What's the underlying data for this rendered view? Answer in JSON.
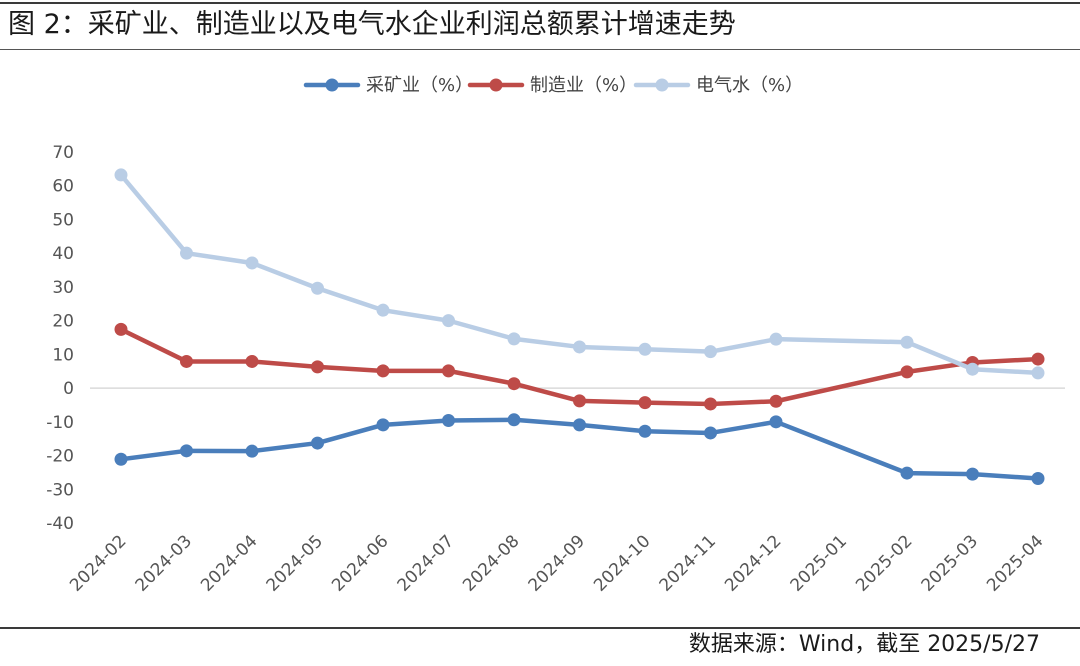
{
  "title": "图 2：采矿业、制造业以及电气水企业利润总额累计增速走势",
  "source": "数据来源：Wind，截至 2025/5/27",
  "chart_data": {
    "type": "line",
    "categories": [
      "2024-02",
      "2024-03",
      "2024-04",
      "2024-05",
      "2024-06",
      "2024-07",
      "2024-08",
      "2024-09",
      "2024-10",
      "2024-11",
      "2024-12",
      "2025-01",
      "2025-02",
      "2025-03",
      "2025-04"
    ],
    "ylim": [
      -40,
      70
    ],
    "yticks": [
      "70",
      "60",
      "50",
      "40",
      "30",
      "20",
      "10",
      "0",
      "-10",
      "-20",
      "-30",
      "-40"
    ],
    "legend_position": "top-center",
    "grid": false,
    "series": [
      {
        "name": "采矿业（%）",
        "color": "#4a7ebb",
        "values": [
          -21.1,
          -18.6,
          -18.7,
          -16.3,
          -10.9,
          -9.6,
          -9.4,
          -10.9,
          -12.8,
          -13.3,
          -10.0,
          null,
          -25.2,
          -25.5,
          -26.8
        ]
      },
      {
        "name": "制造业（%）",
        "color": "#be4b48",
        "values": [
          17.4,
          7.9,
          7.9,
          6.3,
          5.1,
          5.1,
          1.3,
          -3.8,
          -4.3,
          -4.7,
          -3.9,
          null,
          4.8,
          7.6,
          8.6
        ]
      },
      {
        "name": "电气水（%）",
        "color": "#b9cde5",
        "values": [
          63.2,
          40.0,
          37.1,
          29.6,
          23.1,
          20.0,
          14.6,
          12.2,
          11.5,
          10.8,
          14.5,
          null,
          13.6,
          5.6,
          4.5
        ]
      }
    ]
  }
}
